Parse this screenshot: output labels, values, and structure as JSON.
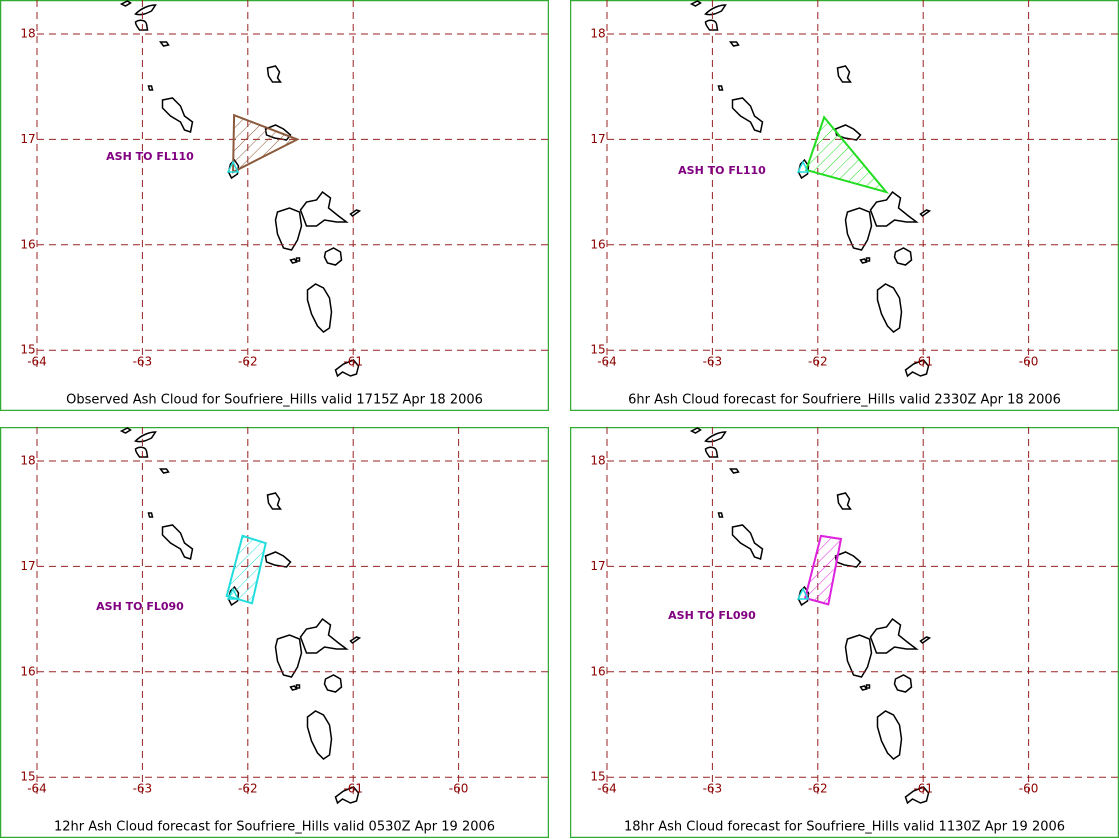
{
  "panels": [
    {
      "caption": "Observed Ash Cloud for Soufriere_Hills valid 1715Z Apr 18 2006",
      "annotation": "ASH TO FL110",
      "color": "#8b5a3c",
      "xticks": [
        -64,
        -63,
        -62,
        -61
      ],
      "yticks": [
        15,
        16,
        17,
        18
      ],
      "ash_cloud": {
        "lon": [
          -62.13,
          -61.53,
          -62.14
        ],
        "lat": [
          17.23,
          17.0,
          16.69
        ]
      }
    },
    {
      "caption": "6hr Ash Cloud forecast for Soufriere_Hills valid 2330Z Apr 18 2006",
      "annotation": "ASH TO FL110",
      "color": "#22dd22",
      "xticks": [
        -64,
        -63,
        -62,
        -61,
        -60
      ],
      "yticks": [
        15,
        16,
        17,
        18
      ],
      "ash_cloud": {
        "lon": [
          -61.94,
          -61.35,
          -62.11
        ],
        "lat": [
          17.21,
          16.5,
          16.71
        ]
      }
    },
    {
      "caption": "12hr Ash Cloud forecast for Soufriere_Hills valid 0530Z Apr 19 2006",
      "annotation": "ASH TO FL090",
      "color": "#22dddd",
      "xticks": [
        -64,
        -63,
        -62,
        -61,
        -60
      ],
      "yticks": [
        15,
        16,
        17,
        18
      ],
      "ash_cloud": {
        "lon": [
          -62.05,
          -61.83,
          -61.96,
          -62.2
        ],
        "lat": [
          17.29,
          17.22,
          16.65,
          16.72
        ]
      }
    },
    {
      "caption": "18hr Ash Cloud forecast for Soufriere_Hills valid 1130Z Apr 19 2006",
      "annotation": "ASH TO FL090",
      "color": "#dd22dd",
      "xticks": [
        -64,
        -63,
        -62,
        -61,
        -60
      ],
      "yticks": [
        15,
        16,
        17,
        18
      ],
      "ash_cloud": {
        "lon": [
          -61.97,
          -61.78,
          -61.9,
          -62.12
        ],
        "lat": [
          17.29,
          17.26,
          16.64,
          16.7
        ]
      }
    }
  ]
}
